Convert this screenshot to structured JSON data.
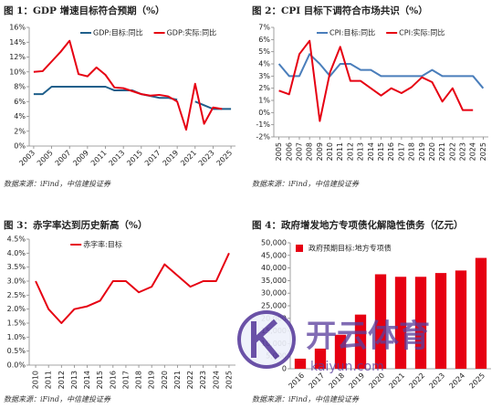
{
  "chart_data": [
    {
      "type": "line",
      "title": "图 1：GDP 增速目标符合预期（%）",
      "source": "数据来源：iFind，中信建投证券",
      "x": [
        2003,
        2004,
        2005,
        2006,
        2007,
        2008,
        2009,
        2010,
        2011,
        2012,
        2013,
        2014,
        2015,
        2016,
        2017,
        2018,
        2019,
        2020,
        2021,
        2022,
        2023,
        2024,
        2025
      ],
      "xlim": [
        2002.5,
        2025.5
      ],
      "xticks": [
        2003,
        2005,
        2007,
        2009,
        2011,
        2013,
        2015,
        2017,
        2019,
        2021,
        2023,
        2025
      ],
      "ylim": [
        0,
        16
      ],
      "yticks": [
        {
          "value": 0,
          "label": "0%"
        },
        {
          "value": 2,
          "label": "2%"
        },
        {
          "value": 4,
          "label": "4%"
        },
        {
          "value": 6,
          "label": "6%"
        },
        {
          "value": 8,
          "label": "8%"
        },
        {
          "value": 10,
          "label": "10%"
        },
        {
          "value": 12,
          "label": "12%"
        },
        {
          "value": 14,
          "label": "14%"
        },
        {
          "value": 16,
          "label": "16%"
        }
      ],
      "grid": false,
      "legend": "top-right",
      "series": [
        {
          "name": "GDP:目标:同比",
          "color": "#1f5f8b",
          "values": [
            7,
            7,
            8,
            8,
            8,
            8,
            8,
            8,
            8,
            7.5,
            7.5,
            7.5,
            7,
            6.75,
            6.5,
            6.5,
            6.25,
            null,
            6,
            5.5,
            5,
            5,
            5
          ]
        },
        {
          "name": "GDP:实际:同比",
          "color": "#e60012",
          "values": [
            10.0,
            10.1,
            11.4,
            12.7,
            14.2,
            9.7,
            9.4,
            10.6,
            9.6,
            7.9,
            7.8,
            7.4,
            7.0,
            6.8,
            6.9,
            6.7,
            6.0,
            2.2,
            8.4,
            3.0,
            5.2,
            5.0,
            null
          ]
        }
      ]
    },
    {
      "type": "line",
      "title": "图 2：CPI 目标下调符合市场共识（%）",
      "source": "数据来源：iFind，中信建投证券",
      "x": [
        2005,
        2006,
        2007,
        2008,
        2009,
        2010,
        2011,
        2012,
        2013,
        2014,
        2015,
        2016,
        2017,
        2018,
        2019,
        2020,
        2021,
        2022,
        2023,
        2024,
        2025
      ],
      "xlim": [
        2004.5,
        2025.5
      ],
      "xticks": [
        2005,
        2006,
        2007,
        2008,
        2009,
        2010,
        2011,
        2012,
        2013,
        2014,
        2015,
        2016,
        2017,
        2018,
        2019,
        2020,
        2021,
        2022,
        2023,
        2024,
        2025
      ],
      "ylim": [
        -2,
        7
      ],
      "yticks": [
        {
          "value": -2,
          "label": "-2%"
        },
        {
          "value": -1,
          "label": "-1%"
        },
        {
          "value": 0,
          "label": "0%"
        },
        {
          "value": 1,
          "label": "1%"
        },
        {
          "value": 2,
          "label": "2%"
        },
        {
          "value": 3,
          "label": "3%"
        },
        {
          "value": 4,
          "label": "4%"
        },
        {
          "value": 5,
          "label": "5%"
        },
        {
          "value": 6,
          "label": "6%"
        },
        {
          "value": 7,
          "label": "7%"
        }
      ],
      "grid": false,
      "legend": "top",
      "series": [
        {
          "name": "CPI:目标:同比",
          "color": "#4a7ebb",
          "values": [
            4,
            3,
            3,
            4.8,
            4,
            3,
            4,
            4,
            3.5,
            3.5,
            3,
            3,
            3,
            3,
            3,
            3.5,
            3,
            3,
            3,
            3,
            2
          ]
        },
        {
          "name": "CPI:实际:同比",
          "color": "#e60012",
          "values": [
            1.8,
            1.5,
            4.8,
            5.9,
            -0.7,
            3.3,
            5.4,
            2.6,
            2.6,
            2.0,
            1.4,
            2.0,
            1.6,
            2.1,
            2.9,
            2.5,
            0.9,
            2.0,
            0.2,
            0.2,
            null
          ]
        }
      ]
    },
    {
      "type": "line",
      "title": "图 3：赤字率达到历史新高（%）",
      "source": "数据来源：iFind，中信建投证券",
      "x": [
        2010,
        2011,
        2012,
        2013,
        2014,
        2015,
        2016,
        2017,
        2018,
        2019,
        2020,
        2021,
        2022,
        2023,
        2024,
        2025
      ],
      "xlim": [
        2009.5,
        2025.5
      ],
      "xticks": [
        2010,
        2011,
        2012,
        2013,
        2014,
        2015,
        2016,
        2017,
        2018,
        2019,
        2020,
        2021,
        2022,
        2023,
        2024,
        2025
      ],
      "ylim": [
        0,
        4.5
      ],
      "yticks": [
        {
          "value": 0,
          "label": "0.0%"
        },
        {
          "value": 0.5,
          "label": "0.5%"
        },
        {
          "value": 1,
          "label": "1.0%"
        },
        {
          "value": 1.5,
          "label": "1.5%"
        },
        {
          "value": 2,
          "label": "2.0%"
        },
        {
          "value": 2.5,
          "label": "2.5%"
        },
        {
          "value": 3,
          "label": "3.0%"
        },
        {
          "value": 3.5,
          "label": "3.5%"
        },
        {
          "value": 4,
          "label": "4.0%"
        },
        {
          "value": 4.5,
          "label": "4.5%"
        }
      ],
      "grid": false,
      "legend": "top",
      "series": [
        {
          "name": "赤字率:目标",
          "color": "#e60012",
          "values": [
            3.0,
            2.0,
            1.5,
            2.0,
            2.1,
            2.3,
            3.0,
            3.0,
            2.6,
            2.8,
            3.6,
            3.2,
            2.8,
            3.0,
            3.0,
            4.0
          ]
        }
      ]
    },
    {
      "type": "bar",
      "title": "图 4：政府增发地方专项债化解隐性债务（亿元）",
      "source": "数据来源：iFind，中信建投证券",
      "categories": [
        "2016",
        "2017",
        "2018",
        "2019",
        "2020",
        "2021",
        "2022",
        "2023",
        "2024",
        "2025"
      ],
      "ylim": [
        0,
        50000
      ],
      "yticks": [
        0,
        {
          "value": 5000,
          "label": "5,000"
        },
        {
          "value": 10000,
          "label": "10,000"
        },
        {
          "value": 15000,
          "label": "15,000"
        },
        {
          "value": 20000,
          "label": "20,000"
        },
        {
          "value": 25000,
          "label": "25,000"
        },
        {
          "value": 30000,
          "label": "30,000"
        },
        {
          "value": 35000,
          "label": "35,000"
        },
        {
          "value": 40000,
          "label": "40,000"
        },
        {
          "value": 45000,
          "label": "45,000"
        },
        {
          "value": 50000,
          "label": "50,000"
        }
      ],
      "grid": false,
      "legend": "top-left",
      "series": [
        {
          "name": "政府预期目标:地方专项债",
          "color": "#e60012",
          "values": [
            4000,
            8000,
            13500,
            21500,
            37500,
            36500,
            36500,
            38000,
            39000,
            44000
          ]
        }
      ]
    }
  ],
  "watermark": {
    "name": "开云体育",
    "site": "kaiyun.com"
  }
}
